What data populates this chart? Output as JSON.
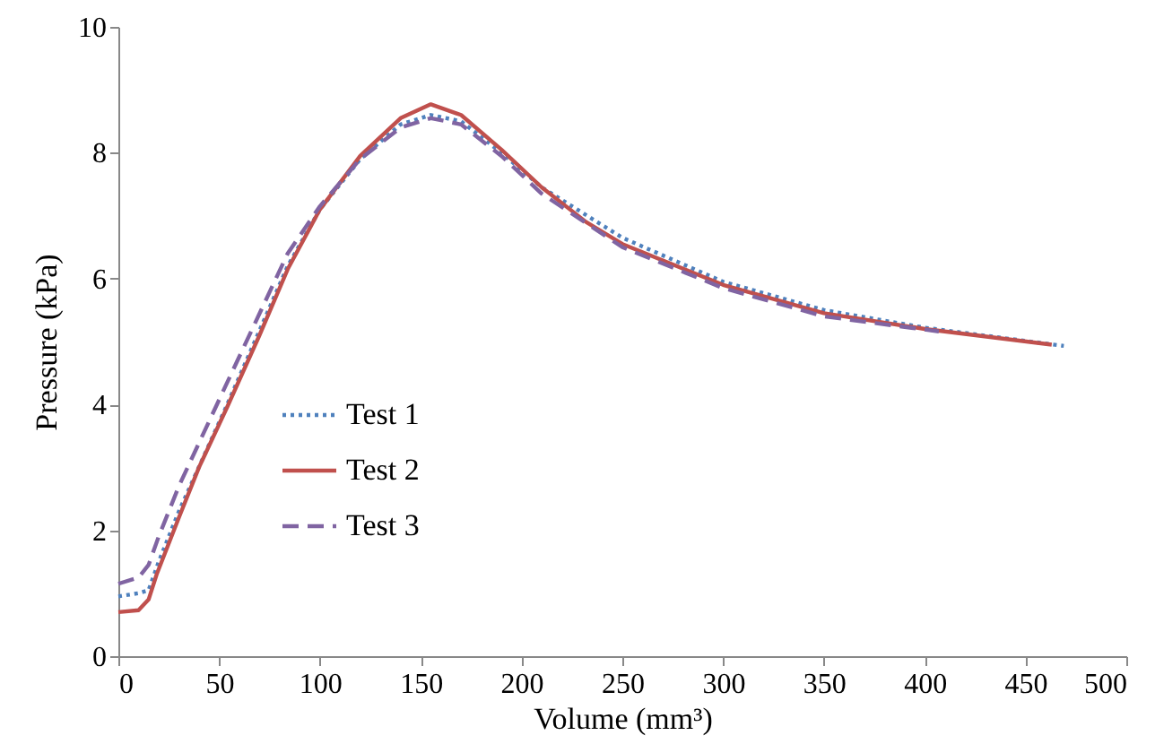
{
  "chart_data": {
    "type": "line",
    "xlabel": "Volume (mm³)",
    "ylabel": "Pressure (kPa)",
    "xlim": [
      0,
      500
    ],
    "xticks": [
      0,
      50,
      100,
      150,
      200,
      250,
      300,
      350,
      400,
      450,
      500
    ],
    "ylim": [
      0,
      10
    ],
    "yticks": [
      0,
      2,
      4,
      6,
      8,
      10
    ],
    "grid": false,
    "legend": "bottom left",
    "marker": "none",
    "series": [
      {
        "name": "Test 1",
        "color": "#4f81bd",
        "line_style": "dotted",
        "x": [
          0,
          10,
          15,
          20,
          30,
          54,
          84,
          100,
          120,
          140,
          155,
          170,
          190,
          210,
          250,
          300,
          350,
          400,
          469
        ],
        "values": [
          0.95,
          1.0,
          1.05,
          1.5,
          2.3,
          4.0,
          6.2,
          7.1,
          7.9,
          8.45,
          8.6,
          8.5,
          8.0,
          7.45,
          6.65,
          5.95,
          5.5,
          5.22,
          4.93
        ]
      },
      {
        "name": "Test 2",
        "color": "#c0504d",
        "line_style": "solid",
        "x": [
          0,
          10,
          15,
          19,
          30,
          40,
          54,
          70,
          84,
          100,
          120,
          140,
          155,
          170,
          190,
          210,
          232,
          250,
          300,
          350,
          400,
          463
        ],
        "values": [
          0.7,
          0.73,
          0.9,
          1.3,
          2.2,
          3.0,
          3.96,
          5.1,
          6.15,
          7.1,
          7.95,
          8.55,
          8.77,
          8.6,
          8.05,
          7.45,
          6.9,
          6.55,
          5.9,
          5.45,
          5.2,
          4.95
        ]
      },
      {
        "name": "Test 3",
        "color": "#8064a2",
        "line_style": "dashed",
        "x": [
          0,
          10,
          15,
          20,
          30,
          54,
          84,
          100,
          120,
          140,
          155,
          170,
          190,
          210,
          250,
          300,
          350,
          407
        ],
        "values": [
          1.15,
          1.25,
          1.45,
          1.9,
          2.7,
          4.35,
          6.4,
          7.15,
          7.9,
          8.4,
          8.55,
          8.45,
          7.95,
          7.35,
          6.5,
          5.85,
          5.4,
          5.16
        ]
      }
    ]
  }
}
